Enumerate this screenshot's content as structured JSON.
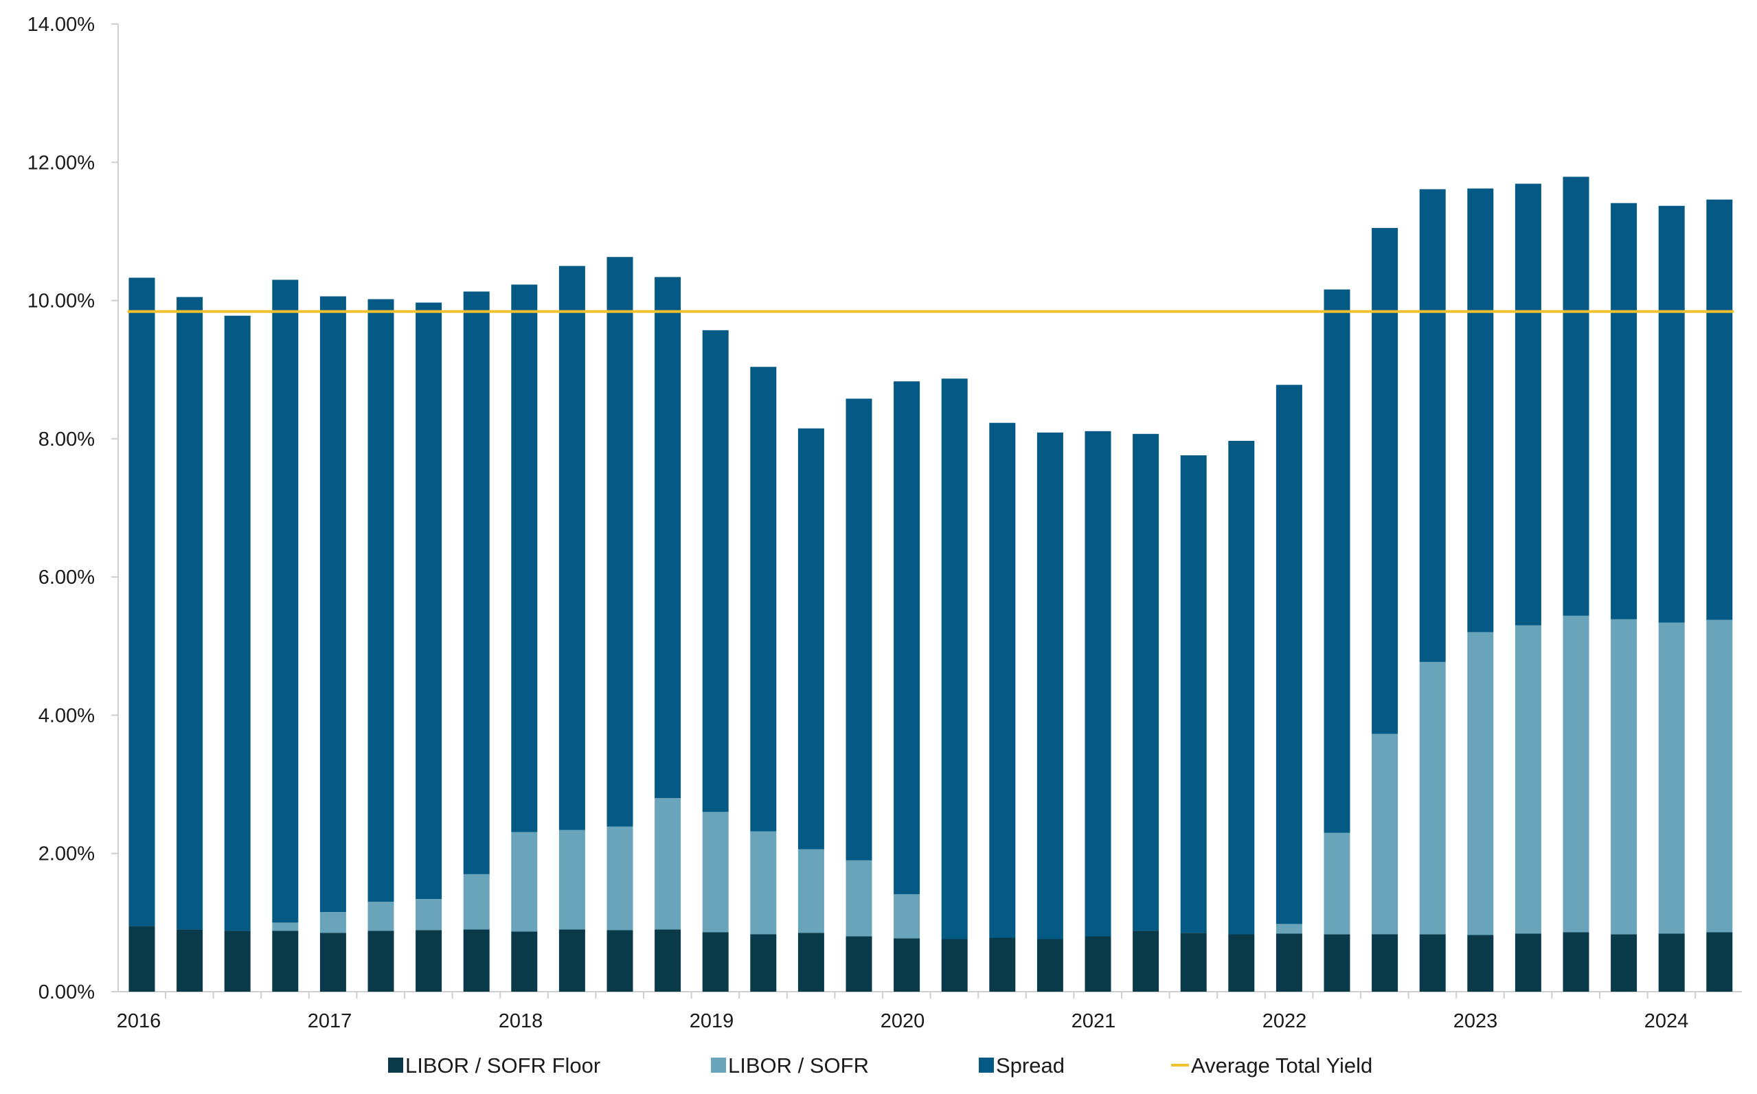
{
  "chart_data": {
    "type": "bar",
    "stacked": true,
    "title": "",
    "xlabel": "",
    "ylabel": "",
    "ylim": [
      0,
      14
    ],
    "y_tick_labels": [
      "0.00%",
      "2.00%",
      "4.00%",
      "6.00%",
      "8.00%",
      "10.00%",
      "12.00%",
      "14.00%"
    ],
    "year_labels": [
      "2016",
      "2017",
      "2018",
      "2019",
      "2020",
      "2021",
      "2022",
      "2023",
      "2024"
    ],
    "grid": false,
    "legend_position": "bottom",
    "series": [
      {
        "name": "LIBOR / SOFR Floor",
        "color": "#083a4a",
        "values": [
          0.95,
          0.9,
          0.88,
          0.88,
          0.85,
          0.88,
          0.89,
          0.9,
          0.87,
          0.9,
          0.89,
          0.9,
          0.86,
          0.83,
          0.85,
          0.8,
          0.77,
          0.76,
          0.78,
          0.76,
          0.8,
          0.88,
          0.85,
          0.83,
          0.84,
          0.83,
          0.83,
          0.83,
          0.82,
          0.84,
          0.86,
          0.83,
          0.84,
          0.86
        ]
      },
      {
        "name": "LIBOR / SOFR",
        "color": "#6aa4bb",
        "values": [
          0.0,
          0.0,
          0.0,
          0.12,
          0.3,
          0.42,
          0.45,
          0.8,
          1.44,
          1.44,
          1.5,
          1.9,
          1.74,
          1.49,
          1.21,
          1.1,
          0.64,
          0.0,
          0.0,
          0.0,
          0.0,
          0.0,
          0.0,
          0.0,
          0.14,
          1.47,
          2.9,
          3.94,
          4.38,
          4.46,
          4.58,
          4.56,
          4.5,
          4.52
        ]
      },
      {
        "name": "Spread",
        "color": "#045a84",
        "values": [
          9.38,
          9.15,
          8.9,
          9.3,
          8.91,
          8.72,
          8.63,
          8.43,
          7.92,
          8.16,
          8.24,
          7.54,
          6.97,
          6.72,
          6.09,
          6.68,
          7.42,
          8.11,
          7.45,
          7.33,
          7.31,
          7.19,
          6.91,
          7.14,
          7.8,
          7.86,
          7.32,
          6.84,
          6.42,
          6.39,
          6.35,
          6.02,
          6.03,
          6.08
        ]
      }
    ],
    "average_line": {
      "name": "Average Total Yield",
      "color": "#f2c12e",
      "value": 9.84
    }
  }
}
